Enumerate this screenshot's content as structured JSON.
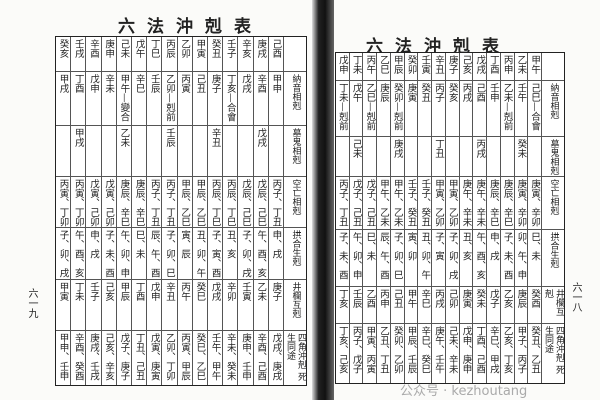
{
  "title": "六法沖剋表",
  "row_labels": [
    "納音相剋",
    "墓鬼相剋",
    "空亡相剋",
    "拱合生剋",
    "井欄互剋",
    "四角沖剋 死生同途"
  ],
  "left_page": {
    "page_number": "六一九",
    "columns": [
      {
        "header": "己酉",
        "cells": [
          "甲申",
          "",
          "丙子、丁丑",
          "申、戌",
          "庚子",
          "戊戌、庚戌"
        ]
      },
      {
        "header": "庚戌",
        "cells": [
          "辛酉",
          "戊戌",
          "戊辰、己巳",
          "午、酉、亥",
          "乙未",
          "辛酉、己酉"
        ]
      },
      {
        "header": "辛亥",
        "cells": [
          "戊戌",
          "",
          "戊辰、己巳",
          "子、卯、戌",
          "壬寅",
          "庚申、壬申"
        ]
      },
      {
        "header": "壬子",
        "cells": [
          "丁亥—合會",
          "",
          "丙辰、丁巳",
          "丑、亥",
          "辛卯",
          "辛未、癸未"
        ]
      },
      {
        "header": "癸丑",
        "cells": [
          "庚子",
          "辛丑",
          "丙辰、丁巳",
          "子、寅、酉",
          "戊戌",
          "壬午、甲午"
        ]
      },
      {
        "header": "甲寅",
        "cells": [
          "己丑",
          "",
          "甲辰、乙巳",
          "丑、卯、午",
          "癸巳",
          "癸巳、乙巳"
        ]
      },
      {
        "header": "乙卯",
        "cells": [
          "丙寅",
          "",
          "甲辰、乙巳",
          "寅、辰",
          "丙午",
          "丙寅、甲辰"
        ]
      },
      {
        "header": "丙辰",
        "cells": [
          "乙卯—剋前",
          "壬辰",
          "丙子、丁丑",
          "子、卯、巳",
          "辛丑",
          "乙卯、丁卯"
        ]
      },
      {
        "header": "丁巳",
        "cells": [
          "壬辰",
          "",
          "丙子、丁丑",
          "辰、午、酉",
          "戊申",
          "戊寅、庚寅"
        ]
      },
      {
        "header": "戊午",
        "cells": [
          "辛巳",
          "",
          "庚辰、辛巳",
          "巳、未",
          "丁酉",
          "丁丑、己丑"
        ]
      },
      {
        "header": "己未",
        "cells": [
          "甲午—變合",
          "乙未",
          "庚辰、辛巳",
          "午、卯、申",
          "甲辰",
          "戊子、庚子"
        ]
      },
      {
        "header": "庚申",
        "cells": [
          "辛未",
          "",
          "戊寅、己卯",
          "子、未、酉",
          "己亥",
          "己亥、辛亥"
        ]
      },
      {
        "header": "辛酉",
        "cells": [
          "戊申",
          "",
          "戊寅、己卯",
          "申、戌",
          "壬子",
          "庚戌、壬戌"
        ]
      },
      {
        "header": "壬戌",
        "cells": [
          "丁酉",
          "甲戌",
          "丙寅、丁卯",
          "午、酉、亥",
          "丁未",
          "辛酉、癸酉"
        ]
      },
      {
        "header": "癸亥",
        "cells": [
          "甲戌",
          "",
          "丙寅、丁卯",
          "子、卯、戌",
          "甲寅",
          "甲申、壬申"
        ]
      }
    ]
  },
  "right_page": {
    "page_number": "六一八",
    "columns": [
      {
        "header": "甲午",
        "cells": [
          "己巳—合會",
          "",
          "庚寅、辛卯",
          "巳、未",
          "癸酉",
          "癸丑、乙丑"
        ]
      },
      {
        "header": "乙未",
        "cells": [
          "壬午",
          "癸未",
          "庚寅、辛卯",
          "卯、午、申",
          "庚辰",
          "甲子、丙子"
        ]
      },
      {
        "header": "丙申",
        "cells": [
          "乙未—剋前",
          "",
          "庚辰、辛巳",
          "子、未、酉",
          "乙亥",
          "乙亥、丁亥"
        ]
      },
      {
        "header": "丁酉",
        "cells": [
          "壬申",
          "",
          "庚辰、辛巳",
          "申、戌",
          "戊子",
          "辛巳、甲戌"
        ]
      },
      {
        "header": "戊戌",
        "cells": [
          "己酉",
          "丙戌",
          "庚午、辛未",
          "午、酉、亥",
          "癸未",
          "丁酉、己酉"
        ]
      },
      {
        "header": "己亥",
        "cells": [
          "丙戌",
          "",
          "庚午、辛未",
          "丑、亥",
          "庚寅",
          "戊申、庚申"
        ]
      },
      {
        "header": "庚子",
        "cells": [
          "癸亥",
          "",
          "甲寅、乙卯",
          "子、卯、戌",
          "己卯",
          "己未、辛未"
        ]
      },
      {
        "header": "辛丑",
        "cells": [
          "丙子",
          "丁丑",
          "甲寅、乙卯",
          "子、寅",
          "丙戌",
          "庚午、壬午"
        ]
      },
      {
        "header": "壬寅",
        "cells": [
          "癸丑",
          "",
          "壬子、癸丑",
          "丑、卯、午",
          "辛巳",
          "辛巳、癸巳"
        ]
      },
      {
        "header": "癸卯",
        "cells": [
          "庚寅",
          "",
          "壬子、癸丑",
          "寅、卯",
          "甲午",
          "甲辰、壬辰"
        ]
      },
      {
        "header": "甲辰",
        "cells": [
          "癸卯—剋前",
          "庚戌",
          "甲午、乙未",
          "子、卯、巳",
          "己丑",
          "癸卯、乙卯"
        ]
      },
      {
        "header": "乙巳",
        "cells": [
          "庚辰",
          "",
          "甲午、乙未",
          "辰、午、酉",
          "丙申",
          "乙丑、丁丑"
        ]
      },
      {
        "header": "丙午",
        "cells": [
          "乙巳—剋前",
          "",
          "戊子、己丑",
          "巳、未",
          "乙酉",
          "甲寅、丙寅"
        ]
      },
      {
        "header": "丁未",
        "cells": [
          "戊午",
          "己未",
          "戊子、己丑",
          "午、卯、申",
          "壬辰",
          "丙子、戊子"
        ]
      },
      {
        "header": "戊申",
        "cells": [
          "丁未—剋前",
          "",
          "丙子、丁丑",
          "子、未、酉",
          "丁亥",
          "丁亥、己亥"
        ]
      }
    ]
  },
  "watermark": "公众号 · kezhoutang"
}
